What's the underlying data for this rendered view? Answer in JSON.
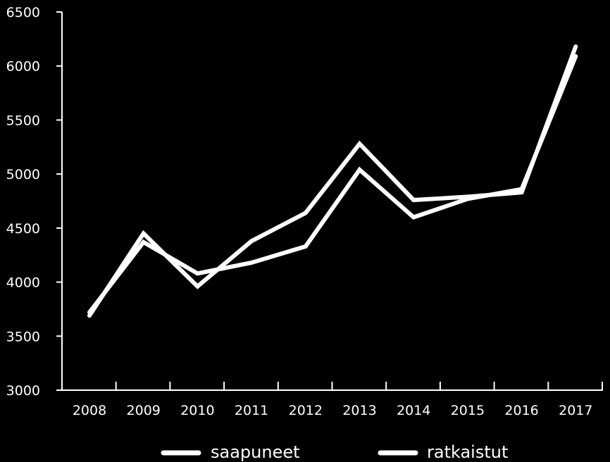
{
  "chart_data": {
    "type": "line",
    "title": "",
    "xlabel": "",
    "ylabel": "",
    "categories": [
      "2008",
      "2009",
      "2010",
      "2011",
      "2012",
      "2013",
      "2014",
      "2015",
      "2016",
      "2017"
    ],
    "ylim": [
      3000,
      6500
    ],
    "yticks": [
      3000,
      3500,
      4000,
      4500,
      5000,
      5500,
      6000,
      6500
    ],
    "grid": false,
    "legend_position": "bottom",
    "series": [
      {
        "name": "saapuneet",
        "values": [
          3690,
          4450,
          3960,
          4380,
          4640,
          5280,
          4760,
          4790,
          4830,
          6180
        ],
        "color": "#ffffff"
      },
      {
        "name": "ratkaistut",
        "values": [
          3720,
          4370,
          4080,
          4180,
          4330,
          5040,
          4600,
          4770,
          4860,
          6090
        ],
        "color": "#ffffff"
      }
    ]
  }
}
